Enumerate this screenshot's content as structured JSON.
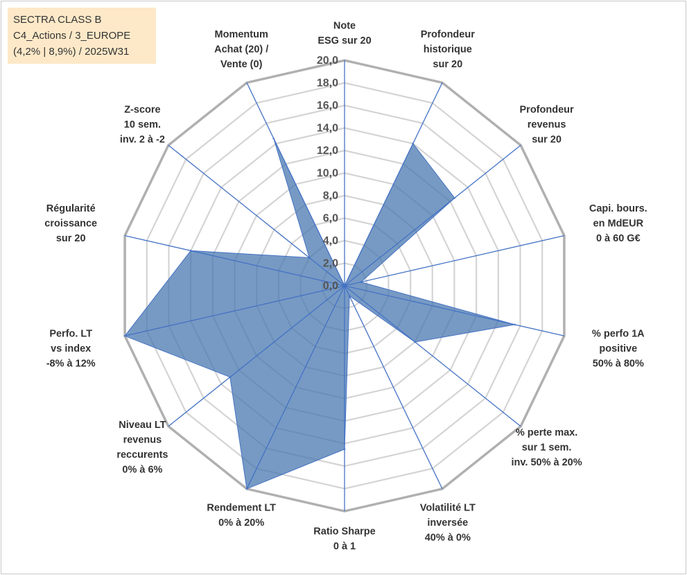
{
  "info_box": {
    "line1": "SECTRA CLASS B",
    "line2": "C4_Actions / 3_EUROPE",
    "line3": "(4,2% | 8,9%) / 2025W31"
  },
  "chart_data": {
    "type": "radar",
    "title": "",
    "range": [
      0,
      20
    ],
    "tick_step": 2,
    "tick_labels": [
      "0,0",
      "2,0",
      "4,0",
      "6,0",
      "8,0",
      "10,0",
      "12,0",
      "14,0",
      "16,0",
      "18,0",
      "20,0"
    ],
    "grid": true,
    "fill_color": "#4a78b0",
    "line_color": "#4472c4",
    "grid_color": "#bfbfbf",
    "axes": [
      {
        "label": [
          "Note",
          "ESG sur 20"
        ],
        "value": 0.0
      },
      {
        "label": [
          "Profondeur",
          "historique",
          "sur 20"
        ],
        "value": 14.0
      },
      {
        "label": [
          "Profondeur",
          "revenus",
          "sur 20"
        ],
        "value": 12.5
      },
      {
        "label": [
          "Capi. bours.",
          "en MdEUR",
          "0 à 60 G€"
        ],
        "value": 1.5
      },
      {
        "label": [
          "% perfo 1A",
          "positive",
          "50% à 80%"
        ],
        "value": 15.5
      },
      {
        "label": [
          "% perte max.",
          "sur 1 sem.",
          "inv. 50% à 20%"
        ],
        "value": 8.0
      },
      {
        "label": [
          "Volatilité LT",
          "inversée",
          "40% à 0%"
        ],
        "value": 1.0
      },
      {
        "label": [
          "Ratio Sharpe",
          "0 à 1"
        ],
        "value": 14.5
      },
      {
        "label": [
          "Rendement LT",
          "0% à 20%"
        ],
        "value": 20.0
      },
      {
        "label": [
          "Niveau LT",
          "revenus",
          "reccurents",
          "0% à 6%"
        ],
        "value": 13.0
      },
      {
        "label": [
          "Perfo. LT",
          "vs index",
          "-8% à 12%"
        ],
        "value": 20.0
      },
      {
        "label": [
          "Régularité",
          "croissance",
          "sur 20"
        ],
        "value": 14.0
      },
      {
        "label": [
          "Z-score",
          "10 sem.",
          "inv. 2 à -2"
        ],
        "value": 4.0
      },
      {
        "label": [
          "Momentum",
          "Achat (20) /",
          "Vente (0)"
        ],
        "value": 14.5
      }
    ]
  }
}
